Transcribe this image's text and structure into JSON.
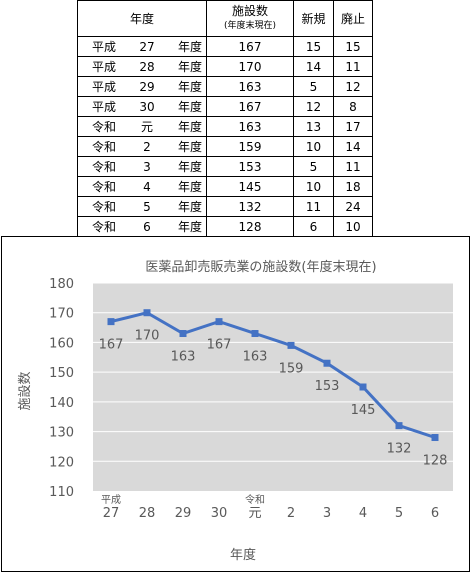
{
  "table": {
    "headers": {
      "year": "年度",
      "count": "施設数",
      "count_sub": "(年度末現在)",
      "new": "新規",
      "closed": "廃止"
    },
    "rows": [
      {
        "era": "平成",
        "num": "27",
        "suffix": "年度",
        "count": "167",
        "new": "15",
        "closed": "15"
      },
      {
        "era": "平成",
        "num": "28",
        "suffix": "年度",
        "count": "170",
        "new": "14",
        "closed": "11"
      },
      {
        "era": "平成",
        "num": "29",
        "suffix": "年度",
        "count": "163",
        "new": "5",
        "closed": "12"
      },
      {
        "era": "平成",
        "num": "30",
        "suffix": "年度",
        "count": "167",
        "new": "12",
        "closed": "8"
      },
      {
        "era": "令和",
        "num": "元",
        "suffix": "年度",
        "count": "163",
        "new": "13",
        "closed": "17"
      },
      {
        "era": "令和",
        "num": "2",
        "suffix": "年度",
        "count": "159",
        "new": "10",
        "closed": "14"
      },
      {
        "era": "令和",
        "num": "3",
        "suffix": "年度",
        "count": "153",
        "new": "5",
        "closed": "11"
      },
      {
        "era": "令和",
        "num": "4",
        "suffix": "年度",
        "count": "145",
        "new": "10",
        "closed": "18"
      },
      {
        "era": "令和",
        "num": "5",
        "suffix": "年度",
        "count": "132",
        "new": "11",
        "closed": "24"
      },
      {
        "era": "令和",
        "num": "6",
        "suffix": "年度",
        "count": "128",
        "new": "6",
        "closed": "10"
      }
    ]
  },
  "chart_data": {
    "type": "line",
    "title": "医薬品卸売販売業の施設数(年度末現在)",
    "xlabel": "年度",
    "ylabel": "施設数",
    "categories": [
      "27",
      "28",
      "29",
      "30",
      "元",
      "2",
      "3",
      "4",
      "5",
      "6"
    ],
    "era_labels": [
      {
        "index": 0,
        "text": "平成"
      },
      {
        "index": 4,
        "text": "令和"
      }
    ],
    "series": [
      {
        "values": [
          167,
          170,
          163,
          167,
          163,
          159,
          153,
          145,
          132,
          128
        ]
      }
    ],
    "ylim": [
      110,
      180
    ],
    "yticks": [
      110,
      120,
      130,
      140,
      150,
      160,
      170,
      180
    ],
    "grid": true,
    "data_labels": true,
    "colors": {
      "line": "#4472C4",
      "plot_bg": "#d9d9d9",
      "grid": "#ffffff",
      "text": "#595959"
    }
  }
}
